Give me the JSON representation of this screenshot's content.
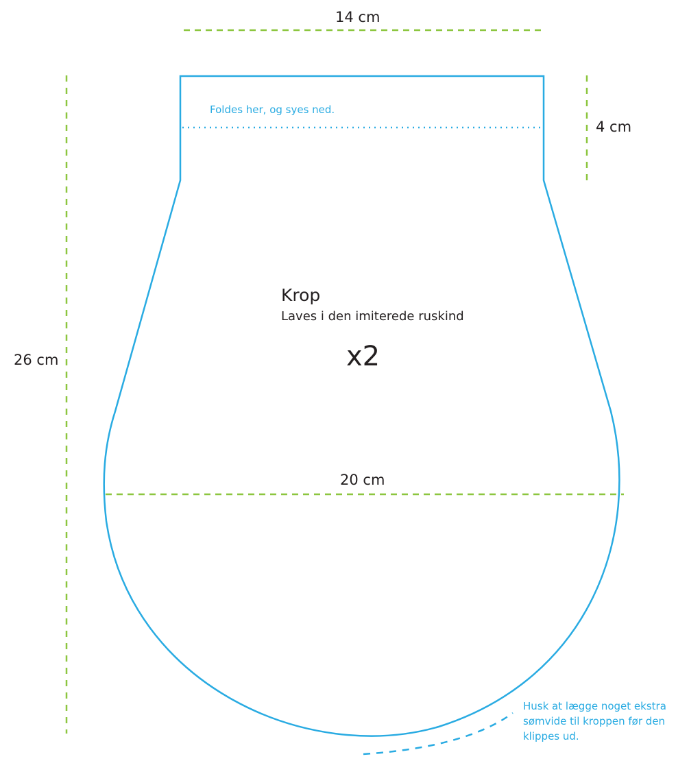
{
  "dimensions": {
    "top_width": "14 cm",
    "total_height": "26 cm",
    "fold_height": "4 cm",
    "max_width": "20 cm"
  },
  "piece": {
    "title": "Krop",
    "material": "Laves i den imiterede ruskind",
    "quantity": "x2"
  },
  "notes": {
    "fold": "Foldes her, og syes ned.",
    "seam_allowance": "Husk at lægge noget ekstra sømvide til kroppen før den klippes ud."
  },
  "colors": {
    "outline": "#29abe2",
    "measure": "#8cc63f",
    "text": "#231f20"
  }
}
